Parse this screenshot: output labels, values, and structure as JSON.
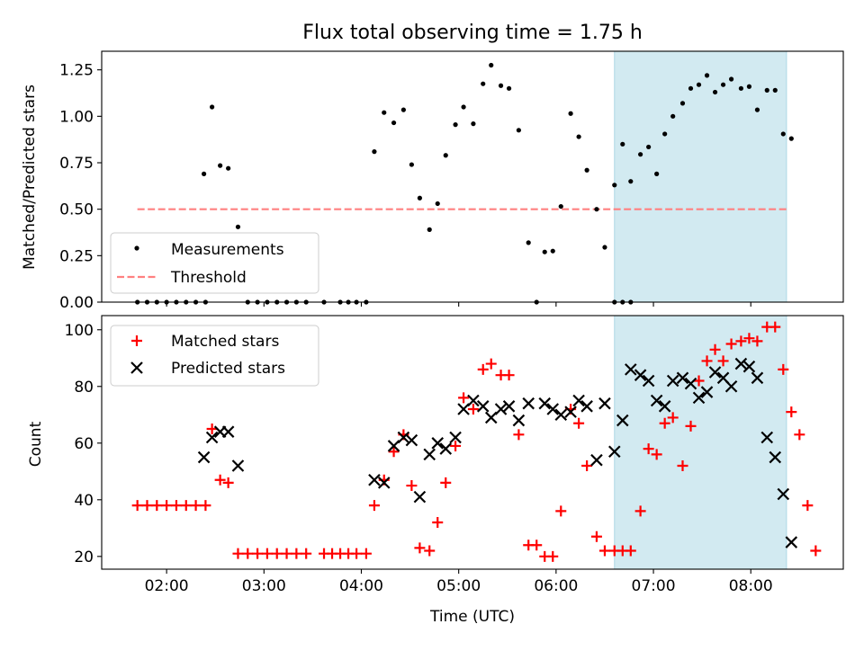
{
  "chart_data": [
    {
      "type": "scatter",
      "title": "Flux total observing time = 1.75 h",
      "xlabel": "",
      "ylabel": "Matched/Predicted stars",
      "xlim": [
        "01:20",
        "08:57"
      ],
      "ylim": [
        0,
        1.35
      ],
      "yticks": [
        "0.00",
        "0.25",
        "0.50",
        "0.75",
        "1.00",
        "1.25"
      ],
      "grid": false,
      "legend_position": "lower-left",
      "shaded_region": {
        "from": "06:36",
        "to": "08:22",
        "color": "#add8e6"
      },
      "threshold": {
        "name": "Threshold",
        "y": 0.5,
        "from": "01:42",
        "to": "08:22",
        "color": "#ff8080"
      },
      "series": [
        {
          "name": "Measurements",
          "color": "#000000",
          "points": [
            [
              "01:42",
              0
            ],
            [
              "01:48",
              0
            ],
            [
              "01:54",
              0
            ],
            [
              "02:00",
              0
            ],
            [
              "02:06",
              0
            ],
            [
              "02:12",
              0
            ],
            [
              "02:18",
              0
            ],
            [
              "02:24",
              0
            ],
            [
              "02:23",
              0.69
            ],
            [
              "02:28",
              1.05
            ],
            [
              "02:33",
              0.735
            ],
            [
              "02:38",
              0.72
            ],
            [
              "02:44",
              0.405
            ],
            [
              "02:50",
              0
            ],
            [
              "02:56",
              0
            ],
            [
              "03:02",
              0
            ],
            [
              "03:08",
              0
            ],
            [
              "03:14",
              0
            ],
            [
              "03:20",
              0
            ],
            [
              "03:26",
              0
            ],
            [
              "03:37",
              0
            ],
            [
              "03:47",
              0
            ],
            [
              "03:52",
              0
            ],
            [
              "03:57",
              0
            ],
            [
              "04:03",
              0
            ],
            [
              "04:08",
              0.81
            ],
            [
              "04:14",
              1.02
            ],
            [
              "04:20",
              0.965
            ],
            [
              "04:26",
              1.035
            ],
            [
              "04:31",
              0.74
            ],
            [
              "04:36",
              0.56
            ],
            [
              "04:42",
              0.39
            ],
            [
              "04:47",
              0.53
            ],
            [
              "04:52",
              0.79
            ],
            [
              "04:58",
              0.955
            ],
            [
              "05:03",
              1.05
            ],
            [
              "05:09",
              0.96
            ],
            [
              "05:15",
              1.175
            ],
            [
              "05:20",
              1.275
            ],
            [
              "05:26",
              1.165
            ],
            [
              "05:31",
              1.15
            ],
            [
              "05:37",
              0.925
            ],
            [
              "05:43",
              0.32
            ],
            [
              "05:48",
              0
            ],
            [
              "05:53",
              0.27
            ],
            [
              "05:58",
              0.275
            ],
            [
              "06:03",
              0.515
            ],
            [
              "06:09",
              1.015
            ],
            [
              "06:14",
              0.89
            ],
            [
              "06:19",
              0.71
            ],
            [
              "06:25",
              0.5
            ],
            [
              "06:30",
              0.295
            ],
            [
              "06:36",
              0
            ],
            [
              "06:41",
              0
            ],
            [
              "06:46",
              0
            ],
            [
              "06:36",
              0.63
            ],
            [
              "06:41",
              0.85
            ],
            [
              "06:46",
              0.65
            ],
            [
              "06:52",
              0.795
            ],
            [
              "06:57",
              0.835
            ],
            [
              "07:02",
              0.69
            ],
            [
              "07:07",
              0.905
            ],
            [
              "07:12",
              1.0
            ],
            [
              "07:18",
              1.07
            ],
            [
              "07:23",
              1.15
            ],
            [
              "07:28",
              1.17
            ],
            [
              "07:33",
              1.22
            ],
            [
              "07:38",
              1.13
            ],
            [
              "07:43",
              1.17
            ],
            [
              "07:48",
              1.2
            ],
            [
              "07:54",
              1.15
            ],
            [
              "07:59",
              1.16
            ],
            [
              "08:04",
              1.035
            ],
            [
              "08:10",
              1.14
            ],
            [
              "08:15",
              1.14
            ],
            [
              "08:20",
              0.905
            ],
            [
              "08:25",
              0.88
            ]
          ]
        }
      ],
      "legend": [
        "Measurements",
        "Threshold"
      ]
    },
    {
      "type": "scatter",
      "title": "",
      "xlabel": "Time (UTC)",
      "ylabel": "Count",
      "xlim": [
        "01:20",
        "08:57"
      ],
      "ylim": [
        15.5,
        105
      ],
      "xticks": [
        "02:00",
        "03:00",
        "04:00",
        "05:00",
        "06:00",
        "07:00",
        "08:00"
      ],
      "yticks": [
        "20",
        "40",
        "60",
        "80",
        "100"
      ],
      "grid": false,
      "legend_position": "upper-left",
      "shaded_region": {
        "from": "06:36",
        "to": "08:22",
        "color": "#add8e6"
      },
      "series": [
        {
          "name": "Matched stars",
          "marker": "+",
          "color": "#ff0000",
          "points": [
            [
              "01:42",
              38
            ],
            [
              "01:48",
              38
            ],
            [
              "01:54",
              38
            ],
            [
              "02:00",
              38
            ],
            [
              "02:06",
              38
            ],
            [
              "02:12",
              38
            ],
            [
              "02:18",
              38
            ],
            [
              "02:24",
              38
            ],
            [
              "02:28",
              65
            ],
            [
              "02:33",
              47
            ],
            [
              "02:38",
              46
            ],
            [
              "02:44",
              21
            ],
            [
              "02:50",
              21
            ],
            [
              "02:56",
              21
            ],
            [
              "03:02",
              21
            ],
            [
              "03:08",
              21
            ],
            [
              "03:14",
              21
            ],
            [
              "03:20",
              21
            ],
            [
              "03:26",
              21
            ],
            [
              "03:37",
              21
            ],
            [
              "03:42",
              21
            ],
            [
              "03:47",
              21
            ],
            [
              "03:52",
              21
            ],
            [
              "03:57",
              21
            ],
            [
              "04:03",
              21
            ],
            [
              "04:08",
              38
            ],
            [
              "04:14",
              47
            ],
            [
              "04:20",
              57
            ],
            [
              "04:26",
              63
            ],
            [
              "04:31",
              45
            ],
            [
              "04:36",
              23
            ],
            [
              "04:42",
              22
            ],
            [
              "04:47",
              32
            ],
            [
              "04:52",
              46
            ],
            [
              "04:58",
              59
            ],
            [
              "05:03",
              76
            ],
            [
              "05:09",
              72
            ],
            [
              "05:15",
              86
            ],
            [
              "05:20",
              88
            ],
            [
              "05:26",
              84
            ],
            [
              "05:31",
              84
            ],
            [
              "05:37",
              63
            ],
            [
              "05:43",
              24
            ],
            [
              "05:48",
              24
            ],
            [
              "05:53",
              20
            ],
            [
              "05:58",
              20
            ],
            [
              "06:03",
              36
            ],
            [
              "06:09",
              72
            ],
            [
              "06:14",
              67
            ],
            [
              "06:19",
              52
            ],
            [
              "06:25",
              27
            ],
            [
              "06:30",
              22
            ],
            [
              "06:36",
              22
            ],
            [
              "06:41",
              22
            ],
            [
              "06:46",
              22
            ],
            [
              "06:52",
              36
            ],
            [
              "06:57",
              58
            ],
            [
              "07:02",
              56
            ],
            [
              "07:07",
              67
            ],
            [
              "07:12",
              69
            ],
            [
              "07:18",
              52
            ],
            [
              "07:23",
              66
            ],
            [
              "07:28",
              82
            ],
            [
              "07:33",
              89
            ],
            [
              "07:38",
              93
            ],
            [
              "07:43",
              89
            ],
            [
              "07:48",
              95
            ],
            [
              "07:54",
              96
            ],
            [
              "07:59",
              97
            ],
            [
              "08:04",
              96
            ],
            [
              "08:10",
              101
            ],
            [
              "08:15",
              101
            ],
            [
              "08:20",
              86
            ],
            [
              "08:25",
              71
            ],
            [
              "08:30",
              63
            ],
            [
              "08:35",
              38
            ],
            [
              "08:40",
              22
            ]
          ]
        },
        {
          "name": "Predicted stars",
          "marker": "x",
          "color": "#000000",
          "points": [
            [
              "02:23",
              55
            ],
            [
              "02:28",
              62
            ],
            [
              "02:33",
              64
            ],
            [
              "02:38",
              64
            ],
            [
              "02:44",
              52
            ],
            [
              "04:08",
              47
            ],
            [
              "04:14",
              46
            ],
            [
              "04:20",
              59
            ],
            [
              "04:26",
              62
            ],
            [
              "04:31",
              61
            ],
            [
              "04:36",
              41
            ],
            [
              "04:42",
              56
            ],
            [
              "04:47",
              60
            ],
            [
              "04:52",
              58
            ],
            [
              "04:58",
              62
            ],
            [
              "05:03",
              72
            ],
            [
              "05:09",
              75
            ],
            [
              "05:15",
              73
            ],
            [
              "05:20",
              69
            ],
            [
              "05:26",
              72
            ],
            [
              "05:31",
              73
            ],
            [
              "05:37",
              68
            ],
            [
              "05:43",
              74
            ],
            [
              "05:53",
              74
            ],
            [
              "05:58",
              72
            ],
            [
              "06:03",
              70
            ],
            [
              "06:09",
              71
            ],
            [
              "06:14",
              75
            ],
            [
              "06:19",
              73
            ],
            [
              "06:25",
              54
            ],
            [
              "06:30",
              74
            ],
            [
              "06:36",
              57
            ],
            [
              "06:41",
              68
            ],
            [
              "06:46",
              86
            ],
            [
              "06:52",
              84
            ],
            [
              "06:57",
              82
            ],
            [
              "07:02",
              75
            ],
            [
              "07:07",
              73
            ],
            [
              "07:12",
              82
            ],
            [
              "07:18",
              83
            ],
            [
              "07:23",
              81
            ],
            [
              "07:28",
              76
            ],
            [
              "07:33",
              78
            ],
            [
              "07:38",
              85
            ],
            [
              "07:43",
              83
            ],
            [
              "07:48",
              80
            ],
            [
              "07:54",
              88
            ],
            [
              "07:59",
              87
            ],
            [
              "08:04",
              83
            ],
            [
              "08:10",
              62
            ],
            [
              "08:15",
              55
            ],
            [
              "08:20",
              42
            ],
            [
              "08:25",
              25
            ]
          ]
        }
      ],
      "legend": [
        "Matched stars",
        "Predicted stars"
      ]
    }
  ]
}
